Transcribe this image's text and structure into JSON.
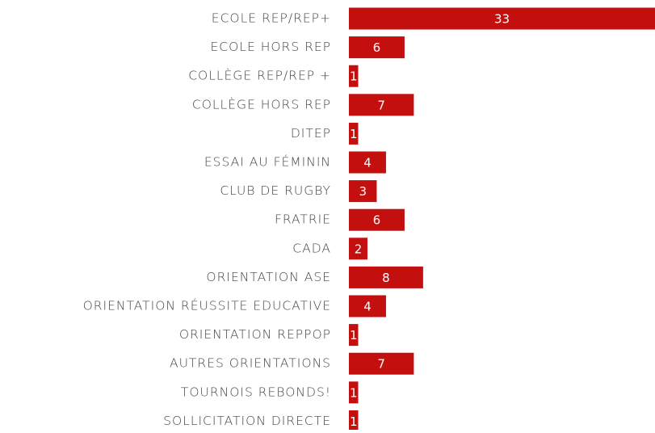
{
  "chart_data": {
    "type": "bar",
    "orientation": "horizontal",
    "color": "#c40f0f",
    "categories": [
      "ECOLE REP/REP+",
      "ECOLE HORS REP",
      "COLLÈGE REP/REP +",
      "COLLÈGE HORS REP",
      "DITEP",
      "ESSAI AU FÉMININ",
      "CLUB DE RUGBY",
      "FRATRIE",
      "CADA",
      "ORIENTATION ASE",
      "ORIENTATION RÉUSSITE EDUCATIVE",
      "ORIENTATION REPPOP",
      "AUTRES ORIENTATIONS",
      "TOURNOIS REBONDS!",
      "SOLLICITATION DIRECTE"
    ],
    "values": [
      33,
      6,
      1,
      7,
      1,
      4,
      3,
      6,
      2,
      8,
      4,
      1,
      7,
      1,
      1
    ]
  }
}
